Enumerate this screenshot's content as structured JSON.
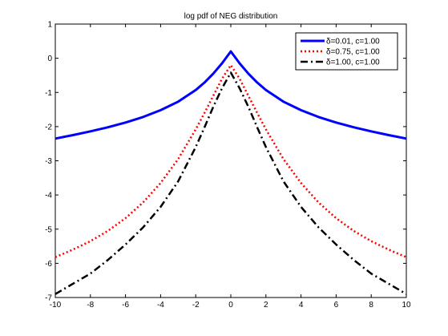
{
  "chart_data": {
    "type": "line",
    "title": "log pdf of NEG distribution",
    "xlabel": "",
    "ylabel": "",
    "xlim": [
      -10,
      10
    ],
    "ylim": [
      -7,
      1
    ],
    "grid": false,
    "legend_position": "top-right",
    "x_ticks": [
      -10,
      -8,
      -6,
      -4,
      -2,
      0,
      2,
      4,
      6,
      8,
      10
    ],
    "y_ticks": [
      1,
      0,
      -1,
      -2,
      -3,
      -4,
      -5,
      -6,
      -7
    ],
    "series": [
      {
        "name": "δ=0.01, c=1.00",
        "color": "#0000ff",
        "style": "solid",
        "x": [
          -10,
          -9,
          -8,
          -7,
          -6,
          -5,
          -4,
          -3,
          -2,
          -1.5,
          -1,
          -0.5,
          0,
          0.5,
          1,
          1.5,
          2,
          3,
          4,
          5,
          6,
          7,
          8,
          9,
          10
        ],
        "y": [
          -2.35,
          -2.25,
          -2.14,
          -2.02,
          -1.88,
          -1.72,
          -1.52,
          -1.27,
          -0.93,
          -0.71,
          -0.45,
          -0.15,
          0.2,
          -0.15,
          -0.45,
          -0.71,
          -0.93,
          -1.27,
          -1.52,
          -1.72,
          -1.88,
          -2.02,
          -2.14,
          -2.25,
          -2.35
        ]
      },
      {
        "name": "δ=0.75, c=1.00",
        "color": "#ff0000",
        "style": "dotted",
        "x": [
          -10,
          -9,
          -8,
          -7,
          -6,
          -5,
          -4,
          -3,
          -2,
          -1.5,
          -1,
          -0.5,
          0,
          0.5,
          1,
          1.5,
          2,
          3,
          4,
          5,
          6,
          7,
          8,
          9,
          10
        ],
        "y": [
          -5.82,
          -5.6,
          -5.35,
          -5.05,
          -4.68,
          -4.22,
          -3.65,
          -2.95,
          -2.08,
          -1.6,
          -1.1,
          -0.6,
          -0.2,
          -0.6,
          -1.1,
          -1.6,
          -2.08,
          -2.95,
          -3.65,
          -4.22,
          -4.68,
          -5.05,
          -5.35,
          -5.6,
          -5.82
        ]
      },
      {
        "name": "δ=1.00, c=1.00",
        "color": "#000000",
        "style": "dashdot",
        "x": [
          -10,
          -9,
          -8,
          -7,
          -6,
          -5,
          -4,
          -3,
          -2,
          -1.5,
          -1,
          -0.5,
          0,
          0.5,
          1,
          1.5,
          2,
          3,
          4,
          5,
          6,
          7,
          8,
          9,
          10
        ],
        "y": [
          -6.9,
          -6.6,
          -6.3,
          -5.9,
          -5.45,
          -4.95,
          -4.35,
          -3.6,
          -2.6,
          -2.02,
          -1.42,
          -0.88,
          -0.42,
          -0.88,
          -1.42,
          -2.02,
          -2.6,
          -3.6,
          -4.35,
          -4.95,
          -5.45,
          -5.9,
          -6.3,
          -6.6,
          -6.9
        ]
      }
    ]
  }
}
